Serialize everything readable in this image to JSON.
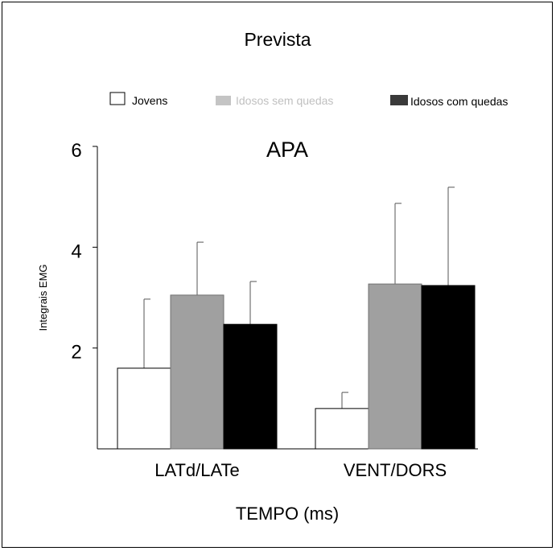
{
  "figure_title": "Prevista",
  "chart_data": {
    "type": "bar",
    "title": "APA",
    "xlabel": "TEMPO (ms)",
    "ylabel": "Integrais EMG",
    "categories": [
      "LATd/LATe",
      "VENT/DORS"
    ],
    "series": [
      {
        "name": "Jovens",
        "color": "#ffffff",
        "values": [
          1.6,
          0.8
        ],
        "error": [
          1.37,
          0.32
        ]
      },
      {
        "name": "Idosos sem quedas",
        "color": "#a0a0a0",
        "values": [
          3.05,
          3.27
        ],
        "error": [
          1.05,
          1.6
        ]
      },
      {
        "name": "Idosos com quedas",
        "color": "#000000",
        "values": [
          2.47,
          3.24
        ],
        "error": [
          0.85,
          1.95
        ]
      }
    ],
    "yticks": [
      2,
      4,
      6
    ],
    "ylim": [
      0,
      6
    ],
    "legend_position": "top",
    "grid": false
  }
}
